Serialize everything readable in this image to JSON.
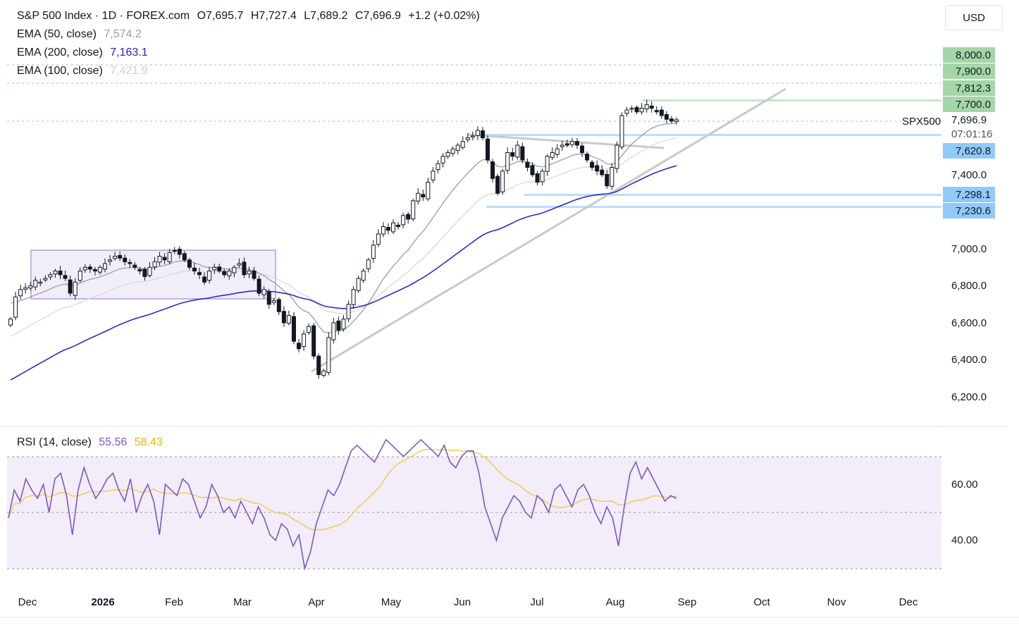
{
  "header": {
    "symbol": "S&P 500 Index · 1D · FOREX.com",
    "open": "O7,695.7",
    "high": "H7,727.4",
    "low": "L7,689.2",
    "close": "C7,696.9",
    "change": "+1.2 (+0.02%)"
  },
  "currency": "USD",
  "indicators": [
    {
      "label": "EMA (50, close)",
      "value": "7,574.2",
      "color": "#9e9e9e"
    },
    {
      "label": "EMA (200, close)",
      "value": "7,163.1",
      "color": "#2222cc"
    },
    {
      "label": "EMA (100, close)",
      "value": "7,421.9",
      "color": "#d5d5d5"
    }
  ],
  "price_axis": {
    "ticks": [
      "8,000.0",
      "7,900.0",
      "7,812.3",
      "7,700.0",
      "7,400.0",
      "7,000.0",
      "6,800.0",
      "6,600.0",
      "6,400.0",
      "6,200.0"
    ],
    "last_price": "7,696.9",
    "countdown": "07:01:16",
    "symbol_label": "SPX500",
    "blue_levels": [
      "7,620.8",
      "7,298.1",
      "7,230.6"
    ]
  },
  "x_axis": {
    "labels": [
      "Dec",
      "2026",
      "Feb",
      "Mar",
      "Apr",
      "May",
      "Jun",
      "Jul",
      "Aug",
      "Sep",
      "Oct",
      "Nov",
      "Dec"
    ]
  },
  "rsi": {
    "label": "RSI (14, close)",
    "value": "55.56",
    "ma_value": "58.43",
    "ticks": [
      "60.00",
      "40.00"
    ],
    "color": "#7e57c2",
    "ma_color": "#f2c94c"
  },
  "chart_data": {
    "type": "candlestick",
    "title": "S&P 500 Index · 1D · FOREX.com",
    "x_range": [
      "Dec",
      "Dec"
    ],
    "y_range": [
      6200,
      8000
    ],
    "price_close_approx": [
      6620,
      6740,
      6780,
      6790,
      6800,
      6830,
      6820,
      6840,
      6860,
      6880,
      6860,
      6840,
      6760,
      6820,
      6880,
      6900,
      6890,
      6880,
      6900,
      6920,
      6940,
      6960,
      6950,
      6930,
      6920,
      6900,
      6880,
      6850,
      6900,
      6930,
      6960,
      6940,
      6980,
      6990,
      6970,
      6940,
      6900,
      6880,
      6860,
      6820,
      6880,
      6900,
      6880,
      6860,
      6880,
      6900,
      6920,
      6860,
      6880,
      6840,
      6760,
      6780,
      6700,
      6720,
      6660,
      6600,
      6640,
      6500,
      6460,
      6540,
      6580,
      6420,
      6320,
      6340,
      6520,
      6600,
      6560,
      6620,
      6700,
      6780,
      6840,
      6880,
      6940,
      7020,
      7080,
      7120,
      7100,
      7140,
      7120,
      7180,
      7160,
      7260,
      7300,
      7280,
      7360,
      7420,
      7460,
      7500,
      7520,
      7540,
      7560,
      7580,
      7600,
      7610,
      7640,
      7600,
      7480,
      7380,
      7300,
      7420,
      7520,
      7500,
      7560,
      7480,
      7440,
      7400,
      7360,
      7420,
      7500,
      7520,
      7540,
      7560,
      7560,
      7580,
      7560,
      7520,
      7480,
      7440,
      7420,
      7400,
      7340,
      7440,
      7560,
      7720,
      7750,
      7760,
      7740,
      7760,
      7780,
      7760,
      7740,
      7720,
      7700,
      7690,
      7697
    ],
    "series": [
      {
        "name": "EMA (50, close)",
        "last": 7574.2
      },
      {
        "name": "EMA (200, close)",
        "last": 7163.1
      },
      {
        "name": "EMA (100, close)",
        "last": 7421.9
      }
    ],
    "rsi_values_approx": [
      48,
      58,
      54,
      62,
      58,
      55,
      60,
      50,
      62,
      64,
      56,
      42,
      58,
      66,
      60,
      55,
      58,
      62,
      64,
      58,
      54,
      62,
      50,
      56,
      60,
      54,
      42,
      60,
      58,
      56,
      62,
      60,
      54,
      48,
      52,
      60,
      56,
      50,
      52,
      48,
      54,
      50,
      46,
      52,
      48,
      42,
      40,
      46,
      44,
      38,
      42,
      30,
      36,
      46,
      52,
      58,
      56,
      60,
      66,
      72,
      74,
      72,
      70,
      68,
      72,
      76,
      74,
      72,
      70,
      72,
      74,
      76,
      74,
      72,
      70,
      74,
      68,
      66,
      70,
      72,
      72,
      64,
      52,
      46,
      40,
      48,
      52,
      56,
      54,
      50,
      48,
      56,
      54,
      50,
      58,
      60,
      56,
      52,
      58,
      60,
      56,
      50,
      46,
      52,
      48,
      38,
      52,
      64,
      68,
      62,
      66,
      62,
      58,
      54,
      56,
      55
    ]
  }
}
